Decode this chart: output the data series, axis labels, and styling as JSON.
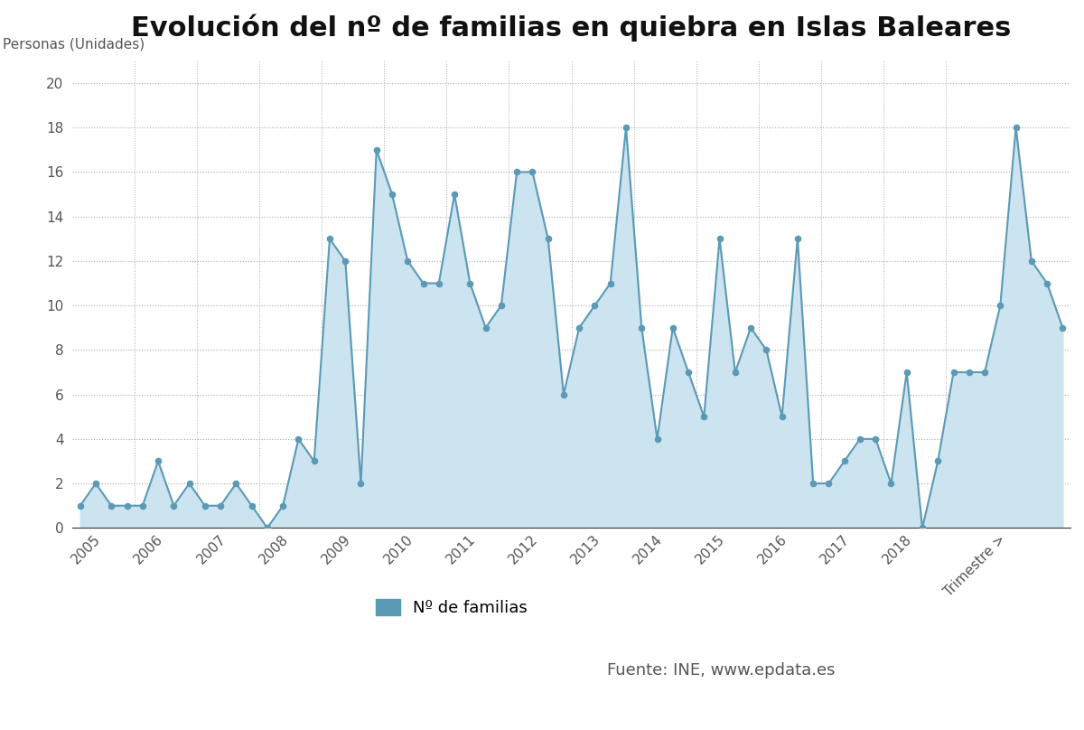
{
  "title": "Evolución del nº de familias en quiebra en Islas Baleares",
  "ylabel": "Personas (Unidades)",
  "line_color": "#5b9ab5",
  "fill_color": "#cce3f0",
  "background_color": "#ffffff",
  "ylim": [
    0,
    21
  ],
  "yticks": [
    0,
    2,
    4,
    6,
    8,
    10,
    12,
    14,
    16,
    18,
    20
  ],
  "legend_label": "Nº de familias",
  "source_text": "Fuente: INE, www.epdata.es",
  "x_labels": [
    "2005",
    "2006",
    "2007",
    "2008",
    "2009",
    "2010",
    "2011",
    "2012",
    "2013",
    "2014",
    "2015",
    "2016",
    "2017",
    "2018",
    "Trimestre >"
  ],
  "quarterly_values": [
    1,
    2,
    1,
    1,
    1,
    3,
    1,
    2,
    1,
    1,
    2,
    1,
    0,
    1,
    4,
    3,
    13,
    12,
    2,
    17,
    15,
    12,
    11,
    11,
    15,
    11,
    9,
    10,
    16,
    16,
    13,
    6,
    9,
    10,
    11,
    18,
    9,
    4,
    9,
    7,
    5,
    13,
    7,
    9,
    8,
    5,
    13,
    2,
    2,
    3,
    4,
    4,
    2,
    7,
    0,
    3,
    7,
    7,
    7,
    10,
    18,
    12,
    11,
    9
  ],
  "quarters_per_year": [
    4,
    4,
    4,
    4,
    4,
    4,
    4,
    4,
    4,
    4,
    4,
    4,
    4,
    4,
    8
  ],
  "title_fontsize": 22,
  "tick_fontsize": 11,
  "label_fontsize": 11,
  "legend_fontsize": 13
}
